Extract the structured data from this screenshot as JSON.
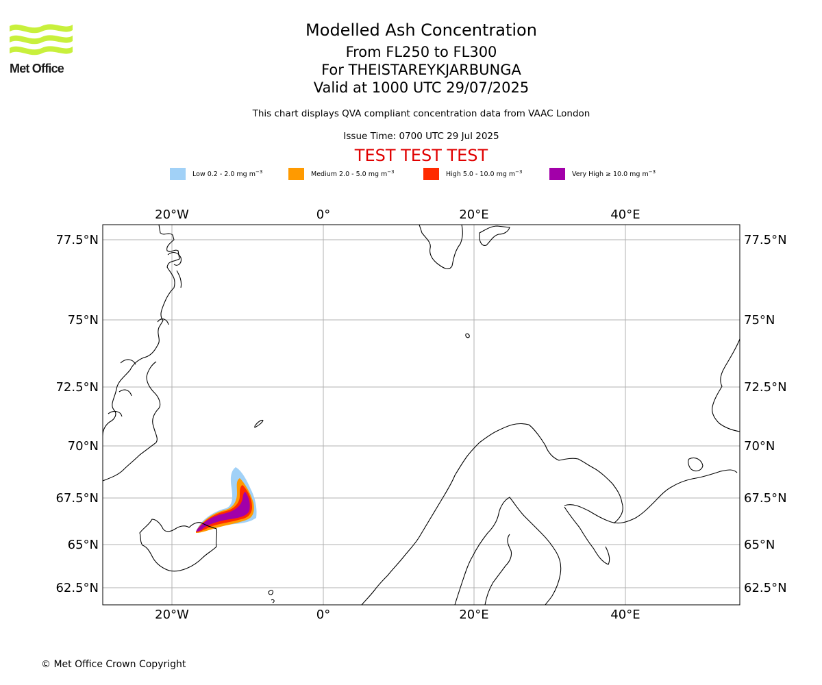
{
  "logo": {
    "text": "Met Office"
  },
  "header": {
    "title": "Modelled Ash Concentration",
    "level_range": "From FL250 to FL300",
    "volcano": "For THEISTAREYKJARBUNGA",
    "valid_time": "Valid at 1000 UTC 29/07/2025",
    "description": "This chart displays QVA compliant concentration data from VAAC London",
    "issue_time": "Issue Time: 0700 UTC 29 Jul 2025",
    "test_banner": "TEST TEST TEST"
  },
  "legend": [
    {
      "label": "Low 0.2 - 2.0 mg m",
      "sup": "−3",
      "color": "#a1d1f7"
    },
    {
      "label": "Medium 2.0 - 5.0 mg m",
      "sup": "−3",
      "color": "#ff9a00"
    },
    {
      "label": "High 5.0 - 10.0 mg m",
      "sup": "−3",
      "color": "#ff2b00"
    },
    {
      "label": "Very High ≥ 10.0 mg m",
      "sup": "−3",
      "color": "#a200a9"
    }
  ],
  "map": {
    "longitudes": [
      "20°W",
      "0°",
      "20°E",
      "40°E"
    ],
    "latitudes": [
      "77.5°N",
      "75°N",
      "72.5°N",
      "70°N",
      "67.5°N",
      "65°N",
      "62.5°N"
    ],
    "grid": true,
    "colors": {
      "coast": "#000000",
      "grid": "#b0b0b0"
    }
  },
  "footer": {
    "copyright": "© Met Office Crown Copyright"
  }
}
